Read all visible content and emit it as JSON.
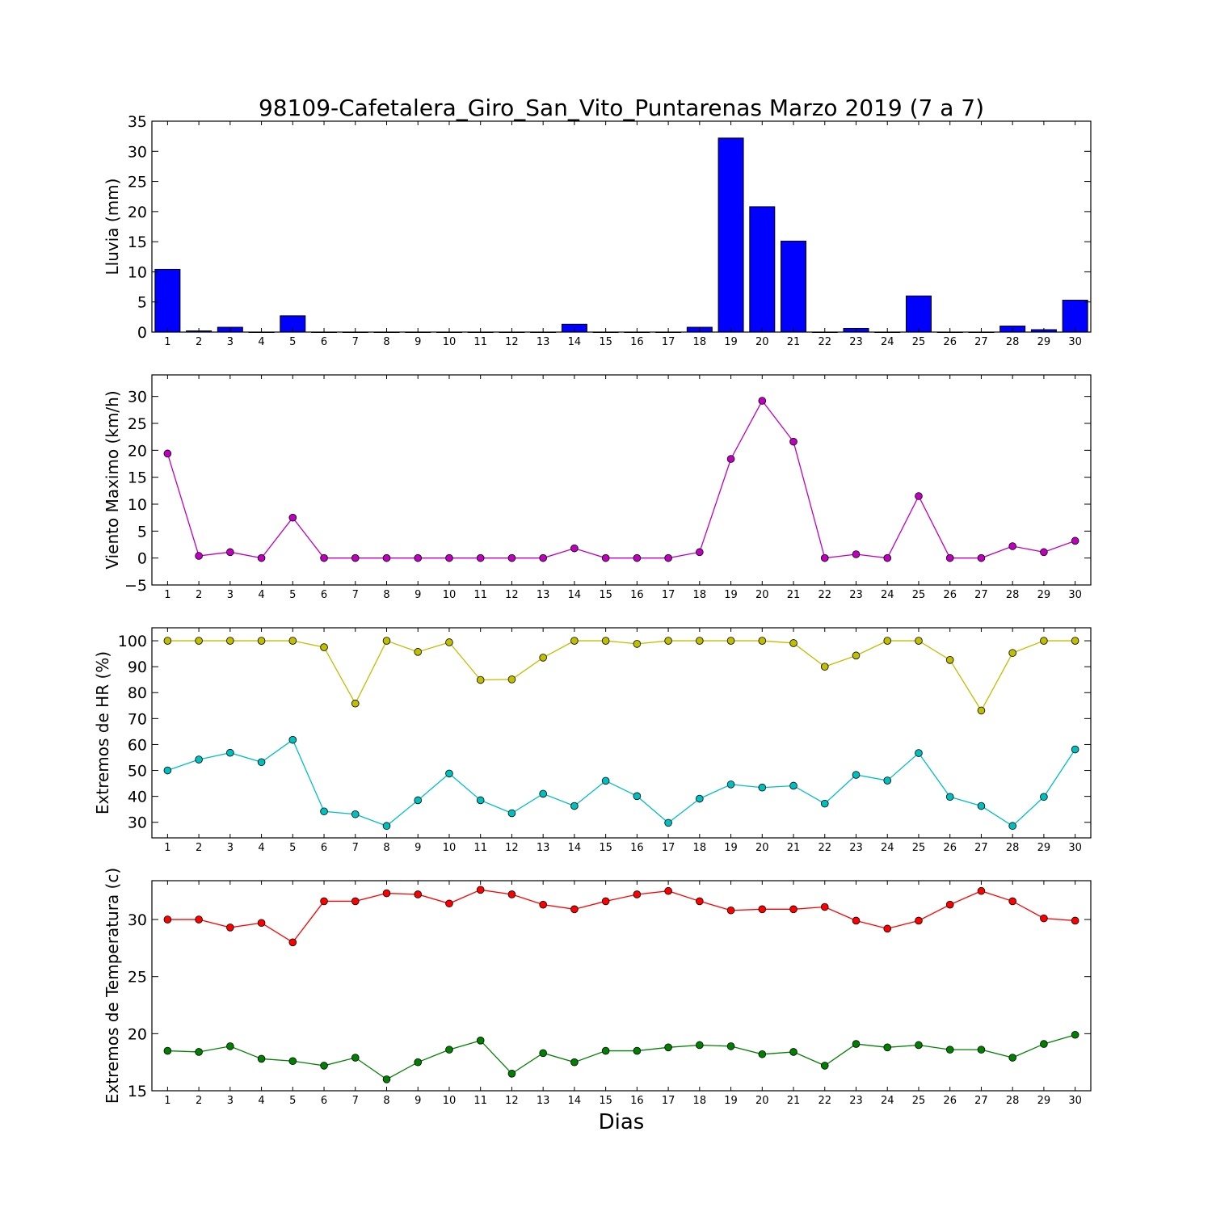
{
  "title": "98109-Cafetalera_Giro_San_Vito_Puntarenas Marzo 2019  (7 a 7)",
  "xlabel": "Dias",
  "chart_data": [
    {
      "type": "bar",
      "ylabel": "Lluvia (mm)",
      "ylim": [
        0,
        35
      ],
      "yticks": [
        0,
        5,
        10,
        15,
        20,
        25,
        30,
        35
      ],
      "x": [
        1,
        2,
        3,
        4,
        5,
        6,
        7,
        8,
        9,
        10,
        11,
        12,
        13,
        14,
        15,
        16,
        17,
        18,
        19,
        20,
        21,
        22,
        23,
        24,
        25,
        26,
        27,
        28,
        29,
        30
      ],
      "series": [
        {
          "color": "#0000ff",
          "values": [
            10.4,
            0.2,
            0.8,
            0,
            2.7,
            0,
            0,
            0,
            0,
            0,
            0,
            0,
            0,
            1.3,
            0,
            0,
            0,
            0.8,
            32.2,
            20.8,
            15.1,
            0,
            0.6,
            0,
            6.0,
            0,
            0,
            1.0,
            0.4,
            5.3
          ]
        }
      ]
    },
    {
      "type": "line",
      "ylabel": "Viento Maximo (km/h)",
      "ylim": [
        -5,
        34
      ],
      "yticks": [
        -5,
        0,
        5,
        10,
        15,
        20,
        25,
        30
      ],
      "x": [
        1,
        2,
        3,
        4,
        5,
        6,
        7,
        8,
        9,
        10,
        11,
        12,
        13,
        14,
        15,
        16,
        17,
        18,
        19,
        20,
        21,
        22,
        23,
        24,
        25,
        26,
        27,
        28,
        29,
        30
      ],
      "series": [
        {
          "color": "#bf00bf",
          "values": [
            19.4,
            0.4,
            1.1,
            0,
            7.5,
            0,
            0,
            0,
            0,
            0,
            0,
            0,
            0,
            1.8,
            0,
            0,
            0,
            1.1,
            18.4,
            29.2,
            21.6,
            0,
            0.7,
            0,
            11.5,
            0,
            0,
            2.2,
            1.1,
            3.2
          ]
        }
      ]
    },
    {
      "type": "line",
      "ylabel": "Extremos de HR (%)",
      "ylim": [
        24,
        105
      ],
      "yticks": [
        30,
        40,
        50,
        60,
        70,
        80,
        90,
        100
      ],
      "x": [
        1,
        2,
        3,
        4,
        5,
        6,
        7,
        8,
        9,
        10,
        11,
        12,
        13,
        14,
        15,
        16,
        17,
        18,
        19,
        20,
        21,
        22,
        23,
        24,
        25,
        26,
        27,
        28,
        29,
        30
      ],
      "series": [
        {
          "color": "#bfbf00",
          "values": [
            100,
            100,
            100,
            100,
            100,
            97.5,
            75.8,
            100,
            95.7,
            99.4,
            84.9,
            85.1,
            93.5,
            100,
            100,
            98.8,
            100,
            100,
            100,
            100,
            99.1,
            90,
            94.3,
            100,
            100,
            92.6,
            73.1,
            95.3,
            100,
            100
          ]
        },
        {
          "color": "#00bfbf",
          "values": [
            50,
            54.2,
            56.8,
            53.2,
            61.8,
            34.2,
            33.1,
            28.6,
            38.5,
            48.8,
            38.5,
            33.5,
            41,
            36.3,
            46,
            40.1,
            29.8,
            39.1,
            44.6,
            43.4,
            44.1,
            37.2,
            48.3,
            46.1,
            56.7,
            39.8,
            36.3,
            28.6,
            39.8,
            58.1
          ]
        }
      ]
    },
    {
      "type": "line",
      "ylabel": "Extremos de Temperatura (c)",
      "ylim": [
        15,
        33.4
      ],
      "yticks": [
        15,
        20,
        25,
        30
      ],
      "x": [
        1,
        2,
        3,
        4,
        5,
        6,
        7,
        8,
        9,
        10,
        11,
        12,
        13,
        14,
        15,
        16,
        17,
        18,
        19,
        20,
        21,
        22,
        23,
        24,
        25,
        26,
        27,
        28,
        29,
        30
      ],
      "series": [
        {
          "color": "#ff0000",
          "values": [
            30,
            30,
            29.3,
            29.7,
            28,
            31.6,
            31.6,
            32.3,
            32.2,
            31.4,
            32.6,
            32.2,
            31.3,
            30.9,
            31.6,
            32.2,
            32.5,
            31.6,
            30.8,
            30.9,
            30.9,
            31.1,
            29.9,
            29.2,
            29.9,
            31.3,
            32.5,
            31.6,
            30.1,
            29.9
          ]
        },
        {
          "color": "#008000",
          "values": [
            18.5,
            18.4,
            18.9,
            17.8,
            17.6,
            17.2,
            17.9,
            16,
            17.5,
            18.6,
            19.4,
            16.5,
            18.3,
            17.5,
            18.5,
            18.5,
            18.8,
            19,
            18.9,
            18.2,
            18.4,
            17.2,
            19.1,
            18.8,
            19,
            18.6,
            18.6,
            17.9,
            19.1,
            19.9
          ]
        }
      ]
    }
  ]
}
